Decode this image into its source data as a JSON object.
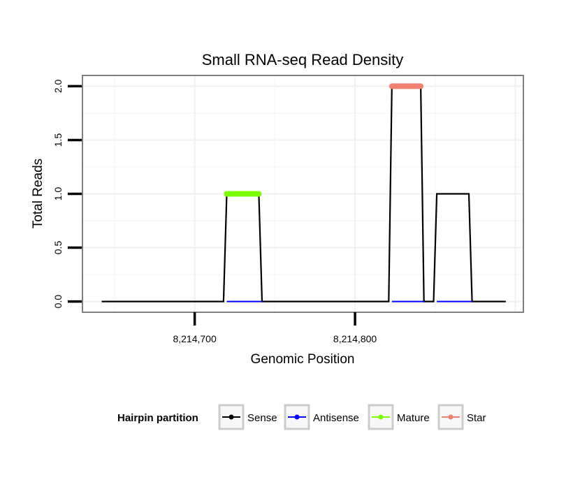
{
  "chart_data": {
    "type": "line",
    "title": "Small RNA-seq Read Density",
    "xlabel": "Genomic Position",
    "ylabel": "Total Reads",
    "xlim": [
      8214630,
      8214905
    ],
    "ylim": [
      -0.1,
      2.1
    ],
    "x_ticks": [
      8214700,
      8214800
    ],
    "x_tick_labels": [
      "8,214,700",
      "8,214,800"
    ],
    "y_ticks": [
      0,
      0.5,
      1,
      1.5,
      2
    ],
    "y_tick_labels": [
      "0.0",
      "0.5",
      "1.0",
      "1.5",
      "2.0"
    ],
    "grid": true,
    "legend": {
      "title": "Hairpin partition",
      "position": "bottom",
      "entries": [
        {
          "label": "Sense",
          "color": "#000000"
        },
        {
          "label": "Antisense",
          "color": "#0000ff"
        },
        {
          "label": "Mature",
          "color": "#7cfc00"
        },
        {
          "label": "Star",
          "color": "#f08070"
        }
      ]
    },
    "series": [
      {
        "name": "Sense",
        "color": "#000000",
        "x": [
          8214642,
          8214718,
          8214720,
          8214740,
          8214742,
          8214821,
          8214823,
          8214841,
          8214843,
          8214849,
          8214851,
          8214871,
          8214873,
          8214894
        ],
        "y": [
          0,
          0,
          1,
          1,
          0,
          0,
          2,
          2,
          0,
          0,
          1,
          1,
          0,
          0
        ]
      },
      {
        "name": "Antisense",
        "color": "#0000ff",
        "x": [
          8214720,
          8214742,
          8214823,
          8214843,
          8214851,
          8214873
        ],
        "y": [
          0,
          0,
          0,
          0,
          0,
          0
        ]
      },
      {
        "name": "Mature",
        "color": "#7cfc00",
        "x": [
          8214720,
          8214740
        ],
        "y": [
          1,
          1
        ]
      },
      {
        "name": "Star",
        "color": "#f08070",
        "x": [
          8214823,
          8214841
        ],
        "y": [
          2,
          2
        ]
      }
    ]
  }
}
